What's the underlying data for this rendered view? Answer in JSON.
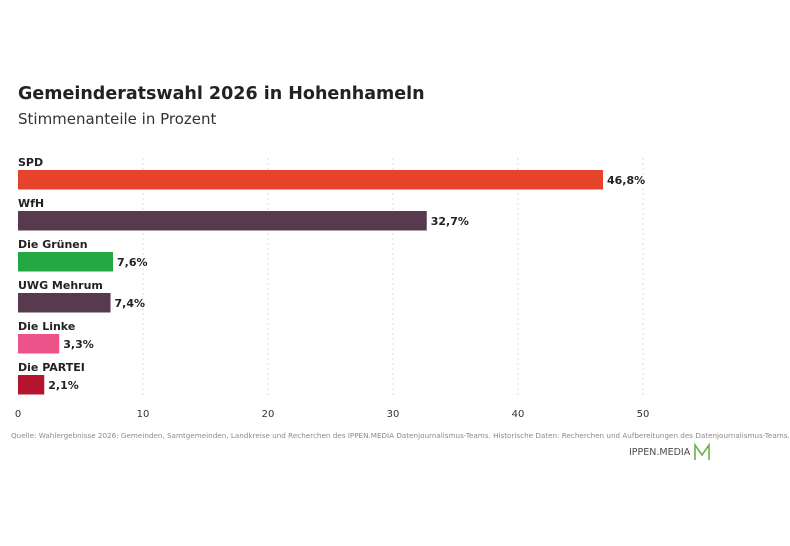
{
  "chart_data": {
    "type": "bar",
    "orientation": "horizontal",
    "title": "Gemeinderatswahl 2026 in Hohenhameln",
    "subtitle": "Stimmenanteile in Prozent",
    "categories": [
      "SPD",
      "WfH",
      "Die Grünen",
      "UWG Mehrum",
      "Die Linke",
      "Die PARTEI"
    ],
    "values": [
      46.8,
      32.7,
      7.6,
      7.4,
      3.3,
      2.1
    ],
    "data_labels": [
      "46,8%",
      "32,7%",
      "7,6%",
      "7,4%",
      "3,3%",
      "2,1%"
    ],
    "colors": [
      "#e5432b",
      "#583a4f",
      "#25a744",
      "#583a4f",
      "#ec5489",
      "#b5142f"
    ],
    "xlim": [
      0,
      50
    ],
    "xticks": [
      0,
      10,
      20,
      30,
      40,
      50
    ],
    "xtick_labels": [
      "0",
      "10",
      "20",
      "30",
      "40",
      "50"
    ],
    "xlabel": "",
    "ylabel": "",
    "grid": "vertical dotted"
  },
  "source": "Quelle: Wahlergebnisse 2026: Gemeinden, Samtgemeinden, Landkreise und Recherchen des IPPEN.MEDIA Datenjournalismus-Teams. Historische Daten: Recherchen und Aufbereitungen des Datenjournalismus-Teams.",
  "logo": {
    "text": "IPPEN.MEDIA",
    "color": "#6ab04c"
  }
}
